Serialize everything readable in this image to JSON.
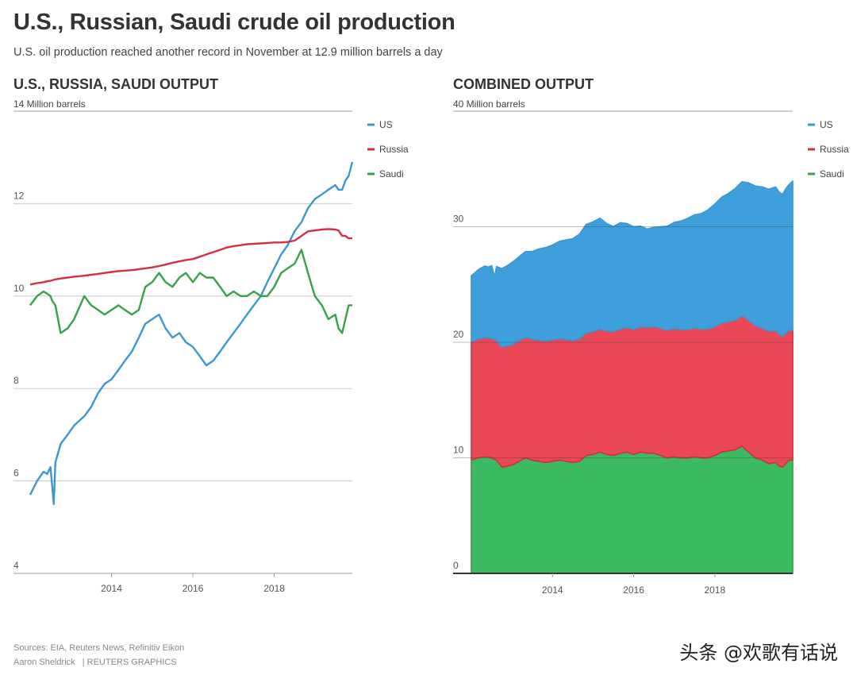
{
  "header": {
    "title": "U.S., Russian, Saudi crude oil production",
    "subtitle": "U.S. oil production reached another record in November at 12.9 million barrels a day"
  },
  "footer": {
    "sources": "Sources: EIA, Reuters News, Refinitiv Eikon",
    "credit": "Aaron Sheldrick",
    "brand": "| REUTERS GRAPHICS"
  },
  "watermark": "头条 @欢歌有话说",
  "colors": {
    "us": "#3d97d0",
    "russia": "#d62e3e",
    "saudi": "#35a24a",
    "grid": "#cccccc",
    "axis": "#333333"
  },
  "chart_data": [
    {
      "type": "line",
      "title": "U.S., RUSSIA, SAUDI OUTPUT",
      "ylabel": "14 Million barrels",
      "ylim": [
        4,
        14
      ],
      "yticks": [
        "4",
        "6",
        "8",
        "10",
        "12"
      ],
      "xlim": [
        2012.0,
        2019.92
      ],
      "xticks": [
        "2014",
        "2016",
        "2018"
      ],
      "grid": true,
      "legend": "top-right",
      "legend_entries": [
        "US",
        "Russia",
        "Saudi"
      ],
      "x": [
        2012.0,
        2012.17,
        2012.33,
        2012.42,
        2012.5,
        2012.54,
        2012.58,
        2012.62,
        2012.75,
        2012.92,
        2013.08,
        2013.33,
        2013.5,
        2013.67,
        2013.83,
        2014.0,
        2014.17,
        2014.33,
        2014.5,
        2014.67,
        2014.83,
        2015.0,
        2015.17,
        2015.33,
        2015.5,
        2015.67,
        2015.83,
        2016.0,
        2016.17,
        2016.33,
        2016.5,
        2016.67,
        2016.83,
        2017.0,
        2017.17,
        2017.33,
        2017.5,
        2017.67,
        2017.83,
        2018.0,
        2018.17,
        2018.33,
        2018.5,
        2018.67,
        2018.83,
        2019.0,
        2019.17,
        2019.33,
        2019.5,
        2019.58,
        2019.67,
        2019.75,
        2019.83,
        2019.92
      ],
      "series": [
        {
          "name": "US",
          "color": "#3d97d0",
          "values": [
            5.7,
            6.0,
            6.2,
            6.15,
            6.3,
            5.9,
            5.5,
            6.4,
            6.8,
            7.0,
            7.2,
            7.4,
            7.6,
            7.9,
            8.1,
            8.2,
            8.4,
            8.6,
            8.8,
            9.1,
            9.4,
            9.5,
            9.6,
            9.3,
            9.1,
            9.2,
            9.0,
            8.9,
            8.7,
            8.5,
            8.6,
            8.8,
            9.0,
            9.2,
            9.4,
            9.6,
            9.8,
            10.0,
            10.3,
            10.6,
            10.9,
            11.1,
            11.4,
            11.6,
            11.9,
            12.1,
            12.2,
            12.3,
            12.4,
            12.3,
            12.3,
            12.5,
            12.6,
            12.9
          ]
        },
        {
          "name": "Russia",
          "color": "#d62e3e",
          "values": [
            10.25,
            10.28,
            10.3,
            10.32,
            10.33,
            10.34,
            10.35,
            10.36,
            10.38,
            10.4,
            10.42,
            10.44,
            10.46,
            10.48,
            10.5,
            10.52,
            10.54,
            10.55,
            10.56,
            10.58,
            10.6,
            10.62,
            10.65,
            10.68,
            10.72,
            10.75,
            10.78,
            10.8,
            10.85,
            10.9,
            10.95,
            11.0,
            11.05,
            11.08,
            11.1,
            11.12,
            11.13,
            11.14,
            11.15,
            11.16,
            11.16,
            11.17,
            11.2,
            11.3,
            11.4,
            11.42,
            11.44,
            11.45,
            11.44,
            11.42,
            11.3,
            11.3,
            11.25,
            11.25
          ]
        },
        {
          "name": "Saudi",
          "color": "#35a24a",
          "values": [
            9.8,
            10.0,
            10.1,
            10.05,
            10.0,
            9.9,
            9.85,
            9.8,
            9.2,
            9.3,
            9.5,
            10.0,
            9.8,
            9.7,
            9.6,
            9.7,
            9.8,
            9.7,
            9.6,
            9.7,
            10.2,
            10.3,
            10.5,
            10.3,
            10.2,
            10.4,
            10.5,
            10.3,
            10.5,
            10.4,
            10.4,
            10.2,
            10.0,
            10.1,
            10.0,
            10.0,
            10.1,
            10.0,
            10.0,
            10.2,
            10.5,
            10.6,
            10.7,
            11.0,
            10.5,
            10.0,
            9.8,
            9.5,
            9.6,
            9.3,
            9.2,
            9.5,
            9.8,
            9.8
          ]
        }
      ]
    },
    {
      "type": "area",
      "stacked": true,
      "title": "COMBINED OUTPUT",
      "ylabel": "40 Million barrels",
      "ylim": [
        0,
        40
      ],
      "yticks": [
        "0",
        "10",
        "20",
        "30"
      ],
      "xlim": [
        2012.0,
        2019.92
      ],
      "xticks": [
        "2014",
        "2016",
        "2018"
      ],
      "grid": true,
      "legend": "top-right",
      "legend_entries": [
        "US",
        "Russia",
        "Saudi"
      ],
      "stack_order": [
        "Saudi",
        "Russia",
        "US"
      ]
    }
  ]
}
